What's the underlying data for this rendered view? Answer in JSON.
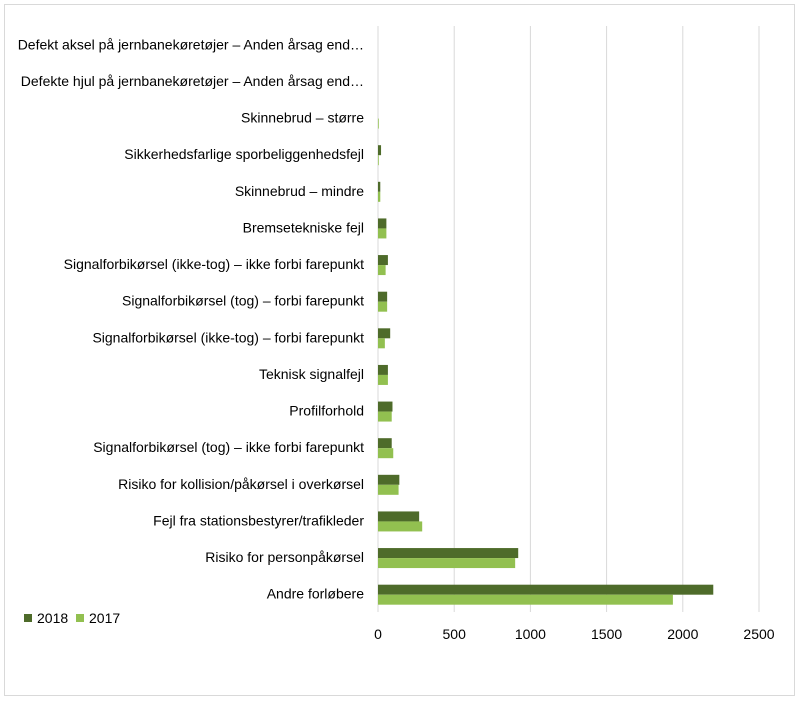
{
  "chart_data": {
    "type": "bar",
    "orientation": "horizontal",
    "categories": [
      "Andre forløbere",
      "Risiko for personpåkørsel",
      "Fejl fra stationsbestyrer/trafikleder",
      "Risiko for kollision/påkørsel i overkørsel",
      "Signalforbikørsel (tog) – ikke forbi farepunkt",
      "Profilforhold",
      "Teknisk signalfejl",
      "Signalforbikørsel (ikke-tog) – forbi farepunkt",
      "Signalforbikørsel (tog) – forbi farepunkt",
      "Signalforbikørsel (ikke-tog) – ikke forbi farepunkt",
      "Bremsetekniske fejl",
      "Skinnebrud – mindre",
      "Sikkerhedsfarlige sporbeliggenhedsfejl",
      "Skinnebrud – større",
      "Defekte hjul på jernbanekøretøjer – Anden årsag end…",
      "Defekt aksel på jernbanekøretøjer – Anden årsag end…"
    ],
    "series": [
      {
        "name": "2018",
        "color": "#4e6b2a",
        "values": [
          2200,
          920,
          270,
          140,
          90,
          95,
          65,
          80,
          60,
          65,
          55,
          15,
          20,
          0,
          0,
          0
        ]
      },
      {
        "name": "2017",
        "color": "#92c050",
        "values": [
          1935,
          900,
          290,
          135,
          100,
          90,
          65,
          45,
          60,
          50,
          55,
          15,
          5,
          5,
          0,
          0
        ]
      }
    ],
    "xlim": [
      0,
      2500
    ],
    "xticks": [
      "0",
      "500",
      "1000",
      "1500",
      "2000",
      "2500"
    ],
    "grid": true,
    "legend_position": "bottom-left"
  }
}
